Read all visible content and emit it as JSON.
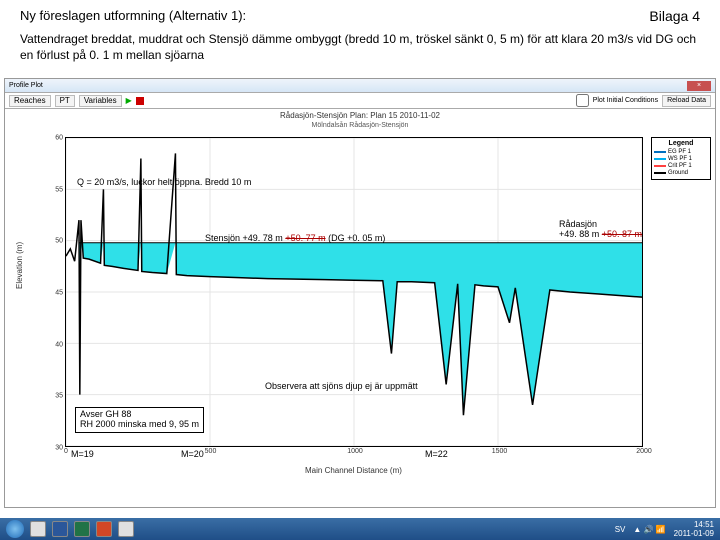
{
  "header": {
    "title": "Ny föreslagen utformning (Alternativ 1):",
    "bilaga": "Bilaga 4",
    "description": "Vattendraget breddat, muddrat och Stensjö dämme ombyggt (bredd 10 m, tröskel sänkt 0, 5 m) för att klara 20 m3/s vid DG och en förlust på 0. 1 m mellan sjöarna"
  },
  "window": {
    "title": "Profile Plot",
    "toolbar": {
      "reaches": "Reaches",
      "pt": "PT",
      "variables": "Variables",
      "check_label": "Plot Initial Conditions",
      "reload": "Reload Data"
    },
    "plot_title": "Rådasjön-Stensjön   Plan: Plan 15   2010-11-02",
    "plot_sub": "Mölndalsån Rådasjön-Stensjön",
    "ylabel": "Elevation (m)",
    "xlabel": "Main Channel Distance (m)"
  },
  "legend": {
    "title": "Legend",
    "items": [
      {
        "label": "EG PF 1",
        "color": "#0070c0",
        "dash": "solid"
      },
      {
        "label": "WS PF 1",
        "color": "#00b0f0",
        "dash": "solid"
      },
      {
        "label": "Crit PF 1",
        "color": "#ff4040",
        "dash": "dashed"
      },
      {
        "label": "Ground",
        "color": "#000000",
        "dash": "solid"
      }
    ]
  },
  "annotations": {
    "q_text": "Q = 20 m3/s, luckor helt öppna. Bredd 10 m",
    "stensjon_pre": "Stensjön +49. 78 m ",
    "stensjon_strike": "+50. 77 m",
    "stensjon_post": " (DG +0. 05 m)",
    "radasjon_pre": "Rådasjön",
    "radasjon_mid": "+49. 88 m ",
    "radasjon_strike": "+50. 87 m",
    "observe": "Observera att sjöns djup ej är uppmätt",
    "note_box_l1": "Avser GH 88",
    "note_box_l2": "RH 2000 minska med 9, 95 m",
    "m19": "M=19",
    "m20": "M=20",
    "m22": "M=22"
  },
  "chart": {
    "type": "profile-area",
    "background_color": "#ffffff",
    "grid_color": "#e4e4e4",
    "water_fill": "#2fe0e8",
    "ground_color": "#000000",
    "ground_width": 1.5,
    "xlim": [
      0,
      2000
    ],
    "ylim": [
      30,
      60
    ],
    "xticks": [
      0,
      500,
      1000,
      1500,
      2000
    ],
    "yticks": [
      30,
      35,
      40,
      45,
      50,
      55,
      60
    ],
    "axis_fontsize": 7,
    "label_fontsize": 8,
    "water_level": 49.8,
    "ground_profile": [
      [
        0,
        48.5
      ],
      [
        15,
        49.2
      ],
      [
        30,
        48.0
      ],
      [
        45,
        52.0
      ],
      [
        48,
        35.0
      ],
      [
        52,
        52.0
      ],
      [
        60,
        48.3
      ],
      [
        80,
        48.2
      ],
      [
        120,
        47.8
      ],
      [
        130,
        55.0
      ],
      [
        133,
        47.6
      ],
      [
        160,
        47.5
      ],
      [
        200,
        47.3
      ],
      [
        250,
        47.1
      ],
      [
        260,
        58.0
      ],
      [
        263,
        47.0
      ],
      [
        300,
        46.9
      ],
      [
        350,
        46.8
      ],
      [
        380,
        58.5
      ],
      [
        383,
        46.7
      ],
      [
        420,
        46.6
      ],
      [
        500,
        46.5
      ],
      [
        600,
        46.4
      ],
      [
        700,
        46.3
      ],
      [
        800,
        46.25
      ],
      [
        900,
        46.2
      ],
      [
        1000,
        46.15
      ],
      [
        1100,
        46.1
      ],
      [
        1130,
        39.0
      ],
      [
        1150,
        46.0
      ],
      [
        1200,
        46.0
      ],
      [
        1280,
        45.9
      ],
      [
        1320,
        36.0
      ],
      [
        1360,
        45.8
      ],
      [
        1380,
        33.0
      ],
      [
        1420,
        45.7
      ],
      [
        1450,
        45.6
      ],
      [
        1500,
        45.5
      ],
      [
        1540,
        42.0
      ],
      [
        1560,
        45.4
      ],
      [
        1620,
        34.0
      ],
      [
        1680,
        45.2
      ],
      [
        1750,
        45.0
      ],
      [
        1850,
        44.8
      ],
      [
        1950,
        44.6
      ],
      [
        2000,
        44.5
      ]
    ],
    "water_start_x": 45
  },
  "taskbar": {
    "lang": "SV",
    "time": "14:51",
    "date": "2011-01-09"
  }
}
